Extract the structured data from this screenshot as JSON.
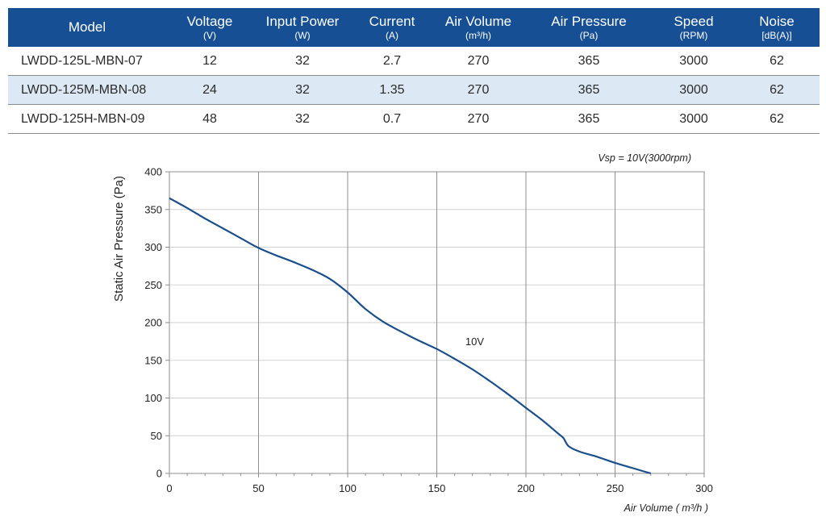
{
  "table": {
    "headers": [
      {
        "label": "Model",
        "unit": ""
      },
      {
        "label": "Voltage",
        "unit": "(V)"
      },
      {
        "label": "Input Power",
        "unit": "(W)"
      },
      {
        "label": "Current",
        "unit": "(A)"
      },
      {
        "label": "Air Volume",
        "unit": "(m³/h)"
      },
      {
        "label": "Air Pressure",
        "unit": "(Pa)"
      },
      {
        "label": "Speed",
        "unit": "(RPM)"
      },
      {
        "label": "Noise",
        "unit": "[dB(A)]"
      }
    ],
    "rows": [
      [
        "LWDD-125L-MBN-07",
        "12",
        "32",
        "2.7",
        "270",
        "365",
        "3000",
        "62"
      ],
      [
        "LWDD-125M-MBN-08",
        "24",
        "32",
        "1.35",
        "270",
        "365",
        "3000",
        "62"
      ],
      [
        "LWDD-125H-MBN-09",
        "48",
        "32",
        "0.7",
        "270",
        "365",
        "3000",
        "62"
      ]
    ]
  },
  "chart_data": {
    "type": "line",
    "title": "Vsp = 10V(3000rpm)",
    "xlabel": "Air Volume ( m³/h )",
    "ylabel": "Static Air Pressure  (Pa)",
    "xlim": [
      0,
      300
    ],
    "ylim": [
      0,
      400
    ],
    "xticks": [
      "0",
      "50",
      "100",
      "150",
      "200",
      "250",
      "300"
    ],
    "yticks": [
      "0",
      "50",
      "100",
      "150",
      "200",
      "250",
      "300",
      "350",
      "400"
    ],
    "grid": true,
    "series": [
      {
        "name": "10V",
        "color": "#1b4f8c",
        "points": [
          [
            0,
            365
          ],
          [
            10,
            352
          ],
          [
            20,
            338
          ],
          [
            30,
            325
          ],
          [
            40,
            312
          ],
          [
            50,
            299
          ],
          [
            60,
            289
          ],
          [
            70,
            280
          ],
          [
            80,
            270
          ],
          [
            90,
            258
          ],
          [
            100,
            240
          ],
          [
            110,
            218
          ],
          [
            120,
            201
          ],
          [
            130,
            188
          ],
          [
            140,
            176
          ],
          [
            150,
            165
          ],
          [
            160,
            152
          ],
          [
            170,
            138
          ],
          [
            180,
            122
          ],
          [
            190,
            105
          ],
          [
            200,
            87
          ],
          [
            210,
            69
          ],
          [
            218,
            53
          ],
          [
            221,
            47
          ],
          [
            224,
            36
          ],
          [
            230,
            29
          ],
          [
            240,
            22
          ],
          [
            250,
            14
          ],
          [
            260,
            7
          ],
          [
            270,
            0
          ]
        ]
      }
    ],
    "annotations": [
      {
        "text": "10V",
        "x": 166,
        "y": 170
      }
    ]
  }
}
